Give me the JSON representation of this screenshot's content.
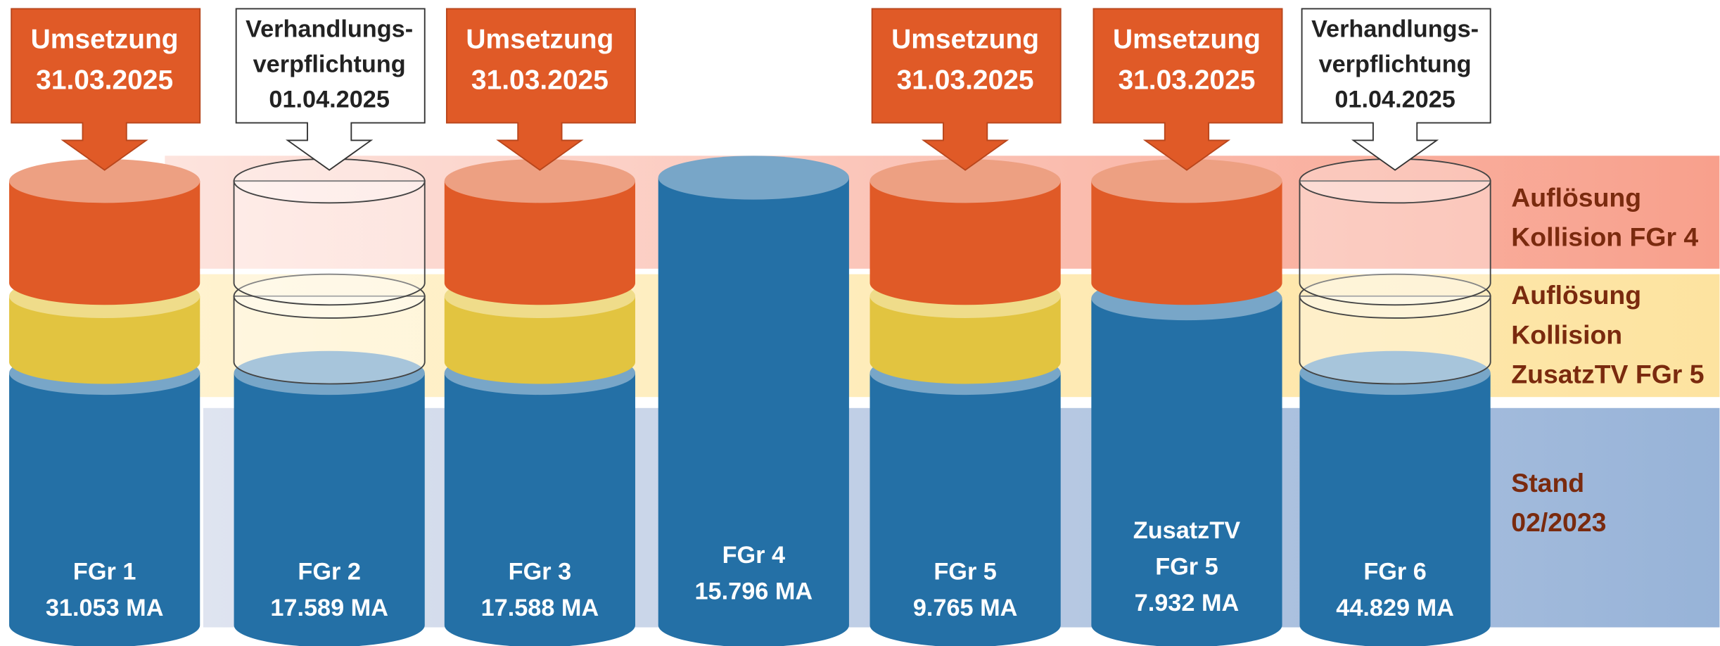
{
  "columns": [
    {
      "label": [
        "FGr 1",
        "31.053 MA"
      ],
      "callout": [
        "Umsetzung",
        "31.03.2025"
      ]
    },
    {
      "label": [
        "FGr 2",
        "17.589 MA"
      ],
      "callout": [
        "Verhandlungs-",
        "verpflichtung",
        "01.04.2025"
      ]
    },
    {
      "label": [
        "FGr 3",
        "17.588 MA"
      ],
      "callout": [
        "Umsetzung",
        "31.03.2025"
      ]
    },
    {
      "label": [
        "FGr 4",
        "15.796 MA"
      ]
    },
    {
      "label": [
        "FGr 5",
        "9.765 MA"
      ],
      "callout": [
        "Umsetzung",
        "31.03.2025"
      ]
    },
    {
      "label": [
        "ZusatzTV",
        "FGr 5",
        "7.932 MA"
      ],
      "callout": [
        "Umsetzung",
        "31.03.2025"
      ]
    },
    {
      "label": [
        "FGr 6",
        "44.829 MA"
      ],
      "callout": [
        "Verhandlungs-",
        "verpflichtung",
        "01.04.2025"
      ]
    }
  ],
  "bands": [
    {
      "label": [
        "Auflösung",
        "Kollision FGr 4"
      ]
    },
    {
      "label": [
        "Auflösung",
        "Kollision",
        "ZusatzTV FGr 5"
      ]
    },
    {
      "label": [
        "Stand",
        "02/2023"
      ]
    }
  ]
}
